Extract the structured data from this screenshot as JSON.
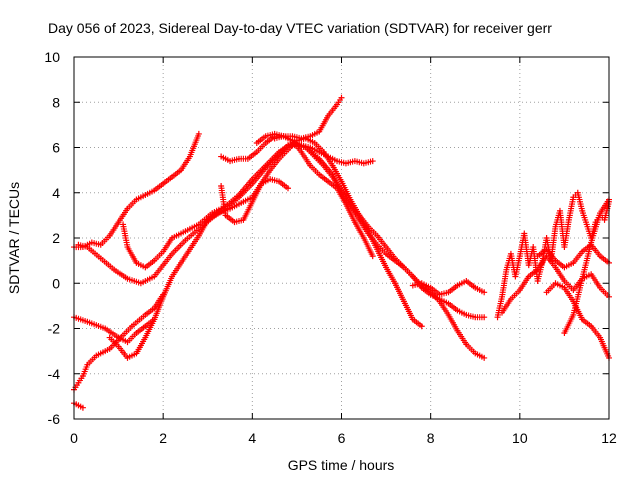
{
  "chart_data": {
    "type": "scatter",
    "title": "Day 056 of 2023, Sidereal Day-to-day VTEC variation (SDTVAR) for receiver gerr",
    "xlabel": "GPS time / hours",
    "ylabel": "SDTVAR / TECUs",
    "xlim": [
      0,
      12
    ],
    "ylim": [
      -6,
      10
    ],
    "xticks": [
      "0",
      "2",
      "4",
      "6",
      "8",
      "10",
      "12"
    ],
    "yticks": [
      "-6",
      "-4",
      "-2",
      "0",
      "2",
      "4",
      "6",
      "8",
      "10"
    ],
    "grid": true,
    "marker": "+",
    "color": "#ff0000",
    "series": [
      {
        "x": [
          0.0,
          0.2,
          0.4,
          0.6,
          0.8,
          1.0,
          1.2,
          1.4,
          1.6,
          1.8,
          2.0,
          2.2,
          2.4,
          2.6,
          2.8
        ],
        "y": [
          1.6,
          1.6,
          1.8,
          1.7,
          2.1,
          2.7,
          3.3,
          3.7,
          3.9,
          4.1,
          4.4,
          4.7,
          5.0,
          5.6,
          6.6
        ]
      },
      {
        "x": [
          0.0,
          0.1,
          0.2,
          0.3,
          0.5,
          0.8,
          1.1,
          1.3,
          1.6,
          1.8,
          2.0
        ],
        "y": [
          -4.7,
          -4.4,
          -4.1,
          -3.6,
          -3.2,
          -2.9,
          -2.3,
          -1.9,
          -1.4,
          -1.1,
          -0.5
        ]
      },
      {
        "x": [
          0.0,
          0.3,
          0.7,
          1.0,
          1.2,
          1.4,
          1.6,
          1.8
        ],
        "y": [
          -1.5,
          -1.7,
          -2.0,
          -2.4,
          -2.6,
          -2.2,
          -1.9,
          -1.6
        ]
      },
      {
        "x": [
          0.0,
          0.1,
          0.2
        ],
        "y": [
          -5.3,
          -5.4,
          -5.5
        ]
      },
      {
        "x": [
          0.1,
          0.3,
          0.6,
          0.9,
          1.2,
          1.5,
          1.8,
          2.0,
          2.2,
          2.5,
          2.8,
          3.1,
          3.4,
          3.7,
          4.0,
          4.3,
          4.6,
          4.8,
          5.0,
          5.2,
          5.4,
          5.6,
          5.8,
          6.0,
          6.2,
          6.4,
          6.6,
          6.8,
          7.0,
          7.2,
          7.4,
          7.6,
          7.8,
          8.0,
          8.2,
          8.4,
          8.6,
          8.8,
          9.0,
          9.2
        ],
        "y": [
          1.7,
          1.6,
          1.1,
          0.6,
          0.2,
          0.0,
          0.3,
          0.8,
          1.3,
          1.9,
          2.4,
          2.9,
          3.3,
          3.8,
          4.4,
          5.1,
          5.7,
          6.1,
          6.1,
          6.0,
          5.6,
          5.2,
          4.7,
          4.1,
          3.5,
          3.0,
          2.5,
          2.1,
          1.6,
          1.1,
          0.7,
          0.3,
          -0.1,
          -0.4,
          -0.8,
          -1.4,
          -2.1,
          -2.7,
          -3.1,
          -3.3
        ]
      },
      {
        "x": [
          1.1,
          1.2,
          1.4,
          1.6,
          1.8,
          2.0,
          2.2,
          2.5,
          2.8,
          3.1,
          3.4,
          3.7,
          4.0,
          4.3,
          4.6,
          4.9,
          5.2,
          5.5,
          5.8,
          6.0,
          6.2,
          6.4,
          6.6,
          6.8,
          7.0,
          7.2,
          7.4,
          7.6,
          7.8,
          8.0,
          8.2,
          8.4,
          8.6,
          8.8,
          9.0,
          9.2
        ],
        "y": [
          2.6,
          1.6,
          0.9,
          0.7,
          1.0,
          1.4,
          2.0,
          2.3,
          2.6,
          3.1,
          3.4,
          3.9,
          4.6,
          5.2,
          5.8,
          6.2,
          6.0,
          5.5,
          4.8,
          4.0,
          3.4,
          2.8,
          2.2,
          1.7,
          1.3,
          1.0,
          0.7,
          0.3,
          -0.2,
          -0.5,
          -0.7,
          -0.9,
          -1.2,
          -1.4,
          -1.5,
          -1.5
        ]
      },
      {
        "x": [
          0.8,
          1.0,
          1.2,
          1.4,
          1.6,
          1.8,
          2.0,
          2.2,
          2.4,
          2.6,
          2.8,
          3.0,
          3.2,
          3.5,
          3.8,
          4.0,
          4.2,
          4.4,
          4.6,
          4.8
        ],
        "y": [
          -2.4,
          -2.8,
          -3.3,
          -3.1,
          -2.4,
          -1.6,
          -0.6,
          0.3,
          0.9,
          1.5,
          2.1,
          2.8,
          3.1,
          3.3,
          3.6,
          3.8,
          4.4,
          4.6,
          4.5,
          4.2
        ]
      },
      {
        "x": [
          3.3,
          3.4,
          3.6,
          3.8,
          4.0,
          4.2,
          4.4,
          4.6,
          4.8,
          5.0,
          5.2,
          5.4,
          5.6,
          5.8,
          6.0,
          6.2,
          6.4,
          6.6,
          6.8,
          7.0,
          7.2,
          7.4,
          7.6,
          7.8
        ],
        "y": [
          4.3,
          3.0,
          2.7,
          2.8,
          3.6,
          4.4,
          5.0,
          5.5,
          5.9,
          6.3,
          6.4,
          6.2,
          5.8,
          5.2,
          4.5,
          3.7,
          3.0,
          2.3,
          1.5,
          0.7,
          0.0,
          -0.8,
          -1.6,
          -1.9
        ]
      },
      {
        "x": [
          3.3,
          3.5,
          3.7,
          3.9,
          4.1,
          4.3,
          4.5,
          4.7,
          4.9,
          5.1,
          5.3,
          5.5,
          5.7,
          5.9,
          6.1,
          6.3,
          6.5,
          6.7
        ],
        "y": [
          5.6,
          5.4,
          5.5,
          5.5,
          5.8,
          6.2,
          6.5,
          6.5,
          6.3,
          5.8,
          5.2,
          4.8,
          4.5,
          4.2,
          3.5,
          2.7,
          2.0,
          1.2
        ]
      },
      {
        "x": [
          4.1,
          4.3,
          4.5,
          4.7,
          4.9,
          5.1,
          5.3,
          5.5,
          5.7,
          5.9,
          6.1,
          6.3,
          6.5,
          6.7
        ],
        "y": [
          6.2,
          6.5,
          6.6,
          6.5,
          6.3,
          6.1,
          6.0,
          5.8,
          5.6,
          5.4,
          5.3,
          5.4,
          5.3,
          5.4
        ]
      },
      {
        "x": [
          4.5,
          4.7,
          4.9,
          5.1,
          5.3,
          5.5,
          5.7,
          5.9,
          6.0
        ],
        "y": [
          6.4,
          6.5,
          6.5,
          6.4,
          6.5,
          6.7,
          7.4,
          7.9,
          8.2
        ]
      },
      {
        "x": [
          7.6,
          7.8,
          8.0,
          8.2,
          8.4,
          8.6,
          8.8,
          9.0,
          9.2
        ],
        "y": [
          -0.1,
          0.0,
          -0.2,
          -0.5,
          -0.4,
          -0.1,
          0.1,
          -0.2,
          -0.4
        ]
      },
      {
        "x": [
          9.5,
          9.6,
          9.7,
          9.8,
          9.9,
          10.0,
          10.1,
          10.2,
          10.3,
          10.4,
          10.5,
          10.6,
          10.7,
          10.8,
          10.9,
          11.0,
          11.1,
          11.2,
          11.3,
          11.4,
          11.5,
          11.6,
          11.7,
          11.8,
          11.9,
          12.0
        ],
        "y": [
          -1.5,
          -0.6,
          0.6,
          1.3,
          0.3,
          1.2,
          2.2,
          0.8,
          1.6,
          0.1,
          0.9,
          2.0,
          1.0,
          2.5,
          3.2,
          1.6,
          2.8,
          3.8,
          4.0,
          3.2,
          2.6,
          2.0,
          2.7,
          3.0,
          2.8,
          3.6
        ]
      },
      {
        "x": [
          9.6,
          9.8,
          10.0,
          10.2,
          10.4,
          10.6,
          10.8,
          11.0,
          11.2,
          11.4,
          11.6,
          11.8,
          12.0
        ],
        "y": [
          -1.3,
          -0.7,
          -0.3,
          0.3,
          0.6,
          1.2,
          0.7,
          0.1,
          -0.3,
          0.2,
          0.4,
          -0.2,
          -0.6
        ]
      },
      {
        "x": [
          10.6,
          10.8,
          11.0,
          11.2,
          11.4,
          11.6,
          11.8,
          12.0
        ],
        "y": [
          -0.4,
          0.0,
          -0.2,
          -0.8,
          -1.6,
          -1.9,
          -2.4,
          -3.3
        ]
      },
      {
        "x": [
          10.4,
          10.6,
          10.8,
          11.0,
          11.2,
          11.4,
          11.6,
          11.8,
          12.0
        ],
        "y": [
          1.2,
          1.5,
          1.0,
          0.7,
          0.9,
          1.4,
          1.7,
          1.2,
          0.9
        ]
      },
      {
        "x": [
          11.0,
          11.2,
          11.4,
          11.6,
          11.8,
          12.0
        ],
        "y": [
          -2.2,
          -1.4,
          0.2,
          1.8,
          3.1,
          3.7
        ]
      }
    ]
  }
}
